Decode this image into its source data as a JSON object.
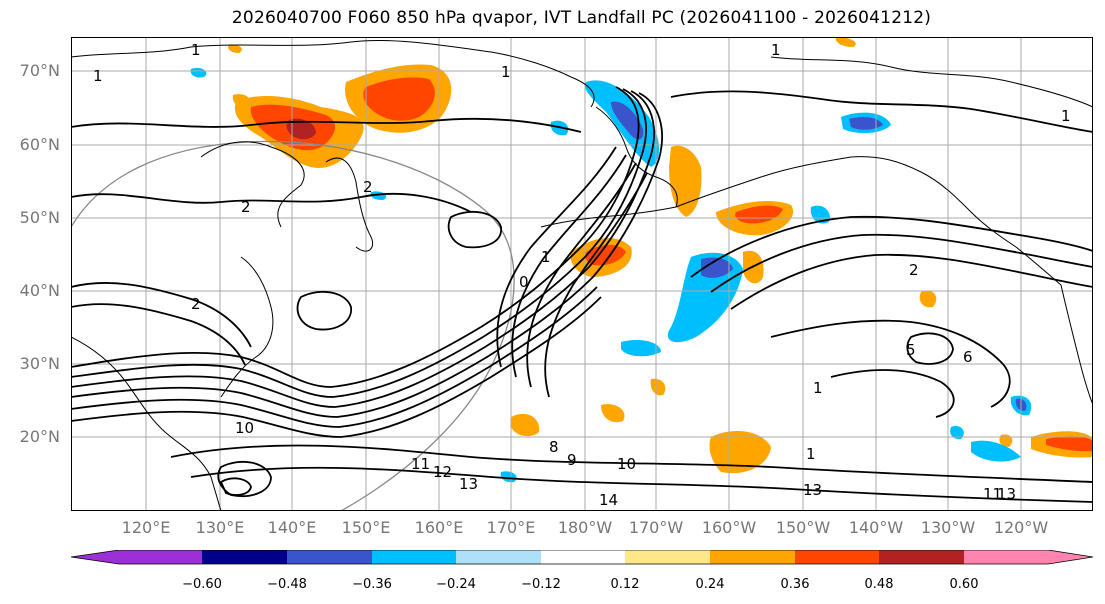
{
  "title": "2026040700 F060 850 hPa qvapor, IVT Landfall PC (2026041100 - 2026041212)",
  "map": {
    "lat_labels": [
      "70°N",
      "60°N",
      "50°N",
      "40°N",
      "30°N",
      "20°N"
    ],
    "lon_labels": [
      "120°E",
      "130°E",
      "140°E",
      "150°E",
      "160°E",
      "170°E",
      "180°W",
      "170°W",
      "160°W",
      "150°W",
      "140°W",
      "130°W",
      "120°W"
    ],
    "contour_labels": [
      "1",
      "1",
      "2",
      "2",
      "2",
      "1",
      "0",
      "1",
      "2",
      "1",
      "1",
      "1",
      "5",
      "6",
      "10",
      "8",
      "9",
      "10",
      "11",
      "12",
      "13",
      "14",
      "13",
      "11",
      "13",
      "1"
    ],
    "colors": {
      "coast": "#000000",
      "grid": "#aaaaaa",
      "projection_circle": "#888888"
    }
  },
  "colorbar": {
    "tick_labels": [
      "−0.60",
      "−0.48",
      "−0.36",
      "−0.24",
      "−0.12",
      "0.12",
      "0.24",
      "0.36",
      "0.48",
      "0.60"
    ],
    "colors": [
      "#9a30d6",
      "#00008b",
      "#3a55cc",
      "#00bfff",
      "#aee0fa",
      "#ffffff",
      "#ffe88a",
      "#ffa500",
      "#ff4500",
      "#b22222",
      "#ff85b0"
    ]
  }
}
